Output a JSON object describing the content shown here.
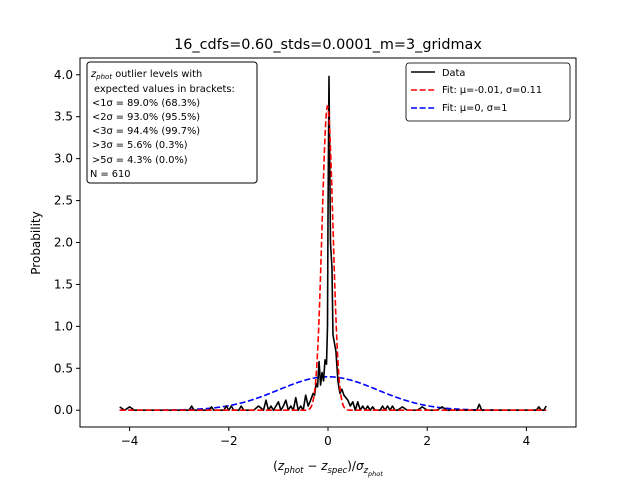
{
  "chart_data": {
    "type": "line",
    "title": "16_cdfs=0.60_stds=0.0001_m=3_gridmax",
    "xlabel": "(z_phot − z_spec)/σ_z_phot",
    "ylabel": "Probability",
    "xlim": [
      -5,
      5
    ],
    "ylim": [
      -0.2,
      4.2
    ],
    "xticks": [
      -4,
      -2,
      0,
      2,
      4
    ],
    "yticks": [
      0.0,
      0.5,
      1.0,
      1.5,
      2.0,
      2.5,
      3.0,
      3.5,
      4.0
    ],
    "xtick_labels": [
      "−4",
      "−2",
      "0",
      "2",
      "4"
    ],
    "ytick_labels": [
      "0.0",
      "0.5",
      "1.0",
      "1.5",
      "2.0",
      "2.5",
      "3.0",
      "3.5",
      "4.0"
    ],
    "grid": false,
    "legend_position": "upper right",
    "legend": [
      {
        "label": "Data",
        "color": "#000000",
        "dash": "solid"
      },
      {
        "label": "Fit: μ=-0.01, σ=0.11",
        "color": "#ff0000",
        "dash": "dashed"
      },
      {
        "label": "Fit: μ=0, σ=1",
        "color": "#0000ff",
        "dash": "dashed"
      }
    ],
    "annotation_lines": [
      "z_phot outlier levels with",
      "expected values in brackets:",
      "<1σ = 89.0% (68.3%)",
      "<2σ = 93.0% (95.5%)",
      "<3σ = 94.4% (99.7%)",
      ">3σ = 5.6% (0.3%)",
      ">5σ = 4.3% (0.0%)",
      "N = 610"
    ],
    "series": [
      {
        "name": "Data",
        "color": "#000000",
        "x": [
          -4.2,
          -4.1,
          -4.0,
          -3.9,
          -3.8,
          -3.7,
          -3.6,
          -3.5,
          -3.4,
          -3.3,
          -3.2,
          -3.1,
          -3.0,
          -2.9,
          -2.8,
          -2.75,
          -2.7,
          -2.6,
          -2.5,
          -2.4,
          -2.35,
          -2.3,
          -2.2,
          -2.1,
          -2.05,
          -2.0,
          -1.95,
          -1.9,
          -1.8,
          -1.75,
          -1.7,
          -1.6,
          -1.5,
          -1.4,
          -1.3,
          -1.25,
          -1.2,
          -1.15,
          -1.1,
          -1.0,
          -0.95,
          -0.9,
          -0.85,
          -0.8,
          -0.75,
          -0.7,
          -0.65,
          -0.6,
          -0.55,
          -0.5,
          -0.45,
          -0.4,
          -0.35,
          -0.3,
          -0.27,
          -0.24,
          -0.21,
          -0.18,
          -0.15,
          -0.12,
          -0.09,
          -0.06,
          -0.03,
          -0.01,
          0.0,
          0.02,
          0.05,
          0.08,
          0.1,
          0.13,
          0.16,
          0.2,
          0.24,
          0.28,
          0.32,
          0.36,
          0.4,
          0.45,
          0.5,
          0.55,
          0.6,
          0.65,
          0.7,
          0.75,
          0.8,
          0.85,
          0.9,
          0.95,
          1.0,
          1.05,
          1.1,
          1.15,
          1.2,
          1.25,
          1.3,
          1.35,
          1.4,
          1.5,
          1.6,
          1.7,
          1.8,
          1.9,
          2.0,
          2.1,
          2.2,
          2.3,
          2.4,
          2.5,
          2.6,
          2.7,
          2.8,
          2.9,
          3.0,
          3.05,
          3.1,
          3.2,
          3.3,
          3.4,
          3.5,
          3.6,
          3.7,
          3.8,
          3.9,
          4.0,
          4.1,
          4.2,
          4.25,
          4.3,
          4.35,
          4.4
        ],
        "y": [
          0.04,
          0.0,
          0.04,
          0.0,
          0.0,
          0.0,
          0.0,
          0.0,
          0.0,
          0.0,
          0.0,
          0.0,
          0.0,
          0.0,
          0.0,
          0.05,
          0.0,
          0.0,
          0.0,
          0.0,
          0.04,
          0.0,
          0.0,
          0.0,
          0.05,
          0.0,
          0.05,
          0.0,
          0.0,
          0.05,
          0.0,
          0.0,
          0.0,
          0.05,
          0.0,
          0.12,
          0.0,
          0.05,
          0.0,
          0.1,
          0.0,
          0.05,
          0.12,
          0.0,
          0.05,
          0.0,
          0.15,
          0.0,
          0.05,
          0.0,
          0.18,
          0.05,
          0.12,
          0.2,
          0.18,
          0.32,
          0.28,
          0.58,
          0.3,
          0.45,
          0.35,
          0.6,
          0.55,
          1.0,
          2.3,
          3.98,
          2.0,
          1.7,
          0.9,
          0.8,
          0.7,
          0.35,
          0.2,
          0.25,
          0.18,
          0.15,
          0.12,
          0.05,
          0.1,
          0.0,
          0.1,
          0.0,
          0.05,
          0.0,
          0.05,
          0.0,
          0.04,
          0.0,
          0.0,
          0.0,
          0.05,
          0.0,
          0.05,
          0.0,
          0.05,
          0.0,
          0.0,
          0.04,
          0.0,
          0.0,
          0.0,
          0.04,
          0.0,
          0.0,
          0.0,
          0.04,
          0.0,
          0.0,
          0.0,
          0.0,
          0.0,
          0.0,
          0.0,
          0.07,
          0.0,
          0.0,
          0.0,
          0.0,
          0.0,
          0.0,
          0.0,
          0.0,
          0.0,
          0.0,
          0.0,
          0.0,
          0.04,
          0.0,
          0.0,
          0.05
        ]
      },
      {
        "name": "Fit: μ=-0.01, σ=0.11",
        "color": "#ff0000",
        "kind": "gaussian",
        "mu": -0.01,
        "sigma": 0.11,
        "x_range": [
          -4.2,
          4.4
        ]
      },
      {
        "name": "Fit: μ=0, σ=1",
        "color": "#0000ff",
        "kind": "gaussian",
        "mu": 0,
        "sigma": 1,
        "x_range": [
          -4.2,
          4.4
        ]
      }
    ]
  }
}
